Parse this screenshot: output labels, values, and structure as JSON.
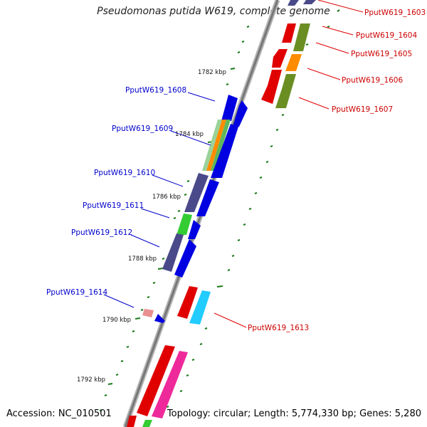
{
  "title": "Pseudomonas putida W619, complete genome",
  "footer": {
    "accession": "Accession: NC_010501",
    "summary": "Topology: circular; Length: 5,774,330 bp; Genes: 5,280"
  },
  "kbp_ticks": [
    "1782 kbp",
    "1784 kbp",
    "1786 kbp",
    "1788 kbp",
    "1790 kbp",
    "1792 kbp"
  ],
  "labels_left": [
    "PputW619_1608",
    "PputW619_1609",
    "PputW619_1610",
    "PputW619_1611",
    "PputW619_1612",
    "PputW619_1614"
  ],
  "labels_right": [
    "PputW619_1603",
    "PputW619_1604",
    "PputW619_1605",
    "PputW619_1606",
    "PputW619_1607",
    "PputW619_1613"
  ],
  "colors": {
    "label_left": "#0000cc",
    "label_right": "#cc0000",
    "backbone": "#888888",
    "tick": "#1a7a1a"
  }
}
